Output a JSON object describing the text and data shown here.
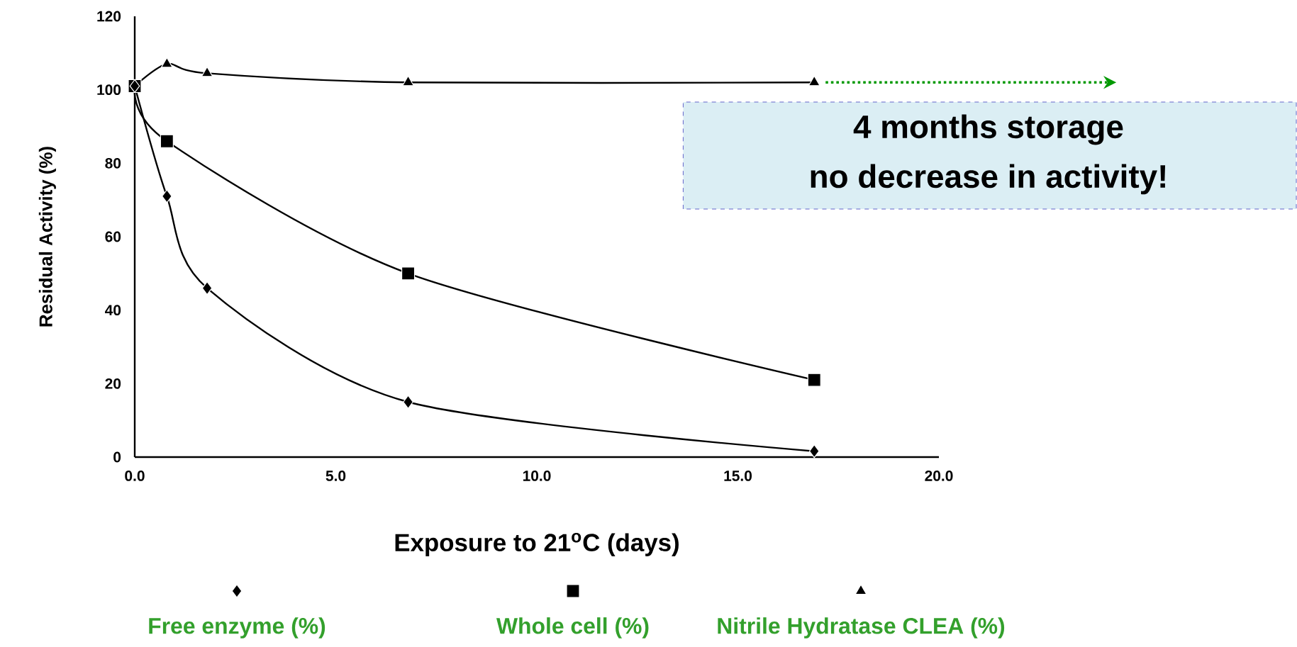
{
  "chart_data": {
    "type": "line",
    "xlabel": "Exposure to 21$^{o}$C (days)",
    "ylabel": "Residual Activity (%)",
    "xlim": [
      0,
      20
    ],
    "xticks": [
      {
        "value": 0,
        "label": "0.0"
      },
      {
        "value": 5,
        "label": "5.0"
      },
      {
        "value": 10,
        "label": "10.0"
      },
      {
        "value": 15,
        "label": "15.0"
      },
      {
        "value": 20,
        "label": "20.0"
      }
    ],
    "ylim": [
      0,
      120
    ],
    "yticks": [
      0,
      20,
      40,
      60,
      80,
      100,
      120
    ],
    "legend": "bottom",
    "grid": false,
    "annotations": [
      "4 months storage",
      "no decrease in activity!"
    ],
    "series": [
      {
        "name": "Free enzyme (%)",
        "color": "#000000",
        "marker": "diamond",
        "x": [
          0,
          0.8,
          1.8,
          6.8,
          16.9
        ],
        "values": [
          101,
          71,
          46,
          15,
          1.6
        ]
      },
      {
        "name": "Whole cell (%)",
        "color": "#000000",
        "marker": "square",
        "x": [
          0,
          0.8,
          6.8,
          16.9
        ],
        "values": [
          101,
          86,
          50,
          21
        ]
      },
      {
        "name": "Nitrile Hydratase CLEA (%)",
        "color": "#000000",
        "marker": "triangle",
        "x": [
          0,
          0.8,
          1.8,
          6.8,
          16.9
        ],
        "values": [
          101,
          107,
          104.5,
          102,
          102
        ]
      }
    ]
  }
}
